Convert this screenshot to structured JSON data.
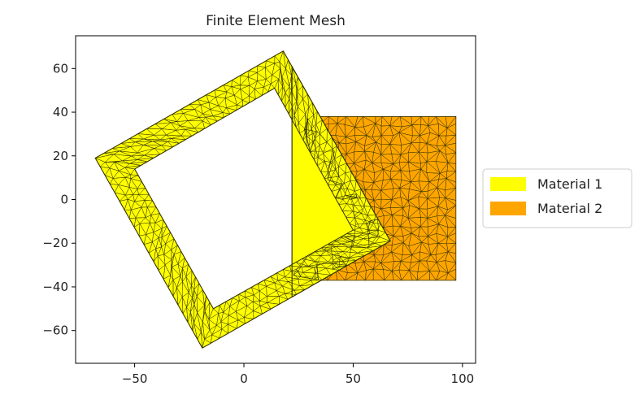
{
  "chart_data": {
    "type": "mesh",
    "title": "Finite Element Mesh",
    "xlabel": "",
    "ylabel": "",
    "xlim": [
      -77,
      106
    ],
    "ylim": [
      -75,
      75
    ],
    "x_ticks": [
      -50,
      0,
      50,
      100
    ],
    "y_ticks": [
      -60,
      -40,
      -20,
      0,
      20,
      40,
      60
    ],
    "x_tick_labels": [
      "−50",
      "0",
      "50",
      "100"
    ],
    "y_tick_labels": [
      "−60",
      "−40",
      "−20",
      "0",
      "20",
      "40",
      "60"
    ],
    "grid": false,
    "legend_position": "outside-right",
    "series": [
      {
        "name": "Material 1",
        "color": "#ffff00",
        "shape": "rotated square frame",
        "outer_polygon": [
          [
            18,
            68
          ],
          [
            67,
            -19
          ],
          [
            -19,
            -68
          ],
          [
            -68,
            19
          ]
        ],
        "inner_polygon": [
          [
            14,
            51
          ],
          [
            50,
            -14
          ],
          [
            -14,
            -50
          ],
          [
            -50,
            14
          ]
        ]
      },
      {
        "name": "Material 2",
        "color": "#ffa500",
        "shape": "rectangle",
        "polygon": [
          [
            22,
            38
          ],
          [
            97,
            38
          ],
          [
            97,
            -37
          ],
          [
            22,
            -37
          ]
        ]
      }
    ],
    "overlap_region_material": "Material 1",
    "mesh_edge_color": "#333300"
  }
}
